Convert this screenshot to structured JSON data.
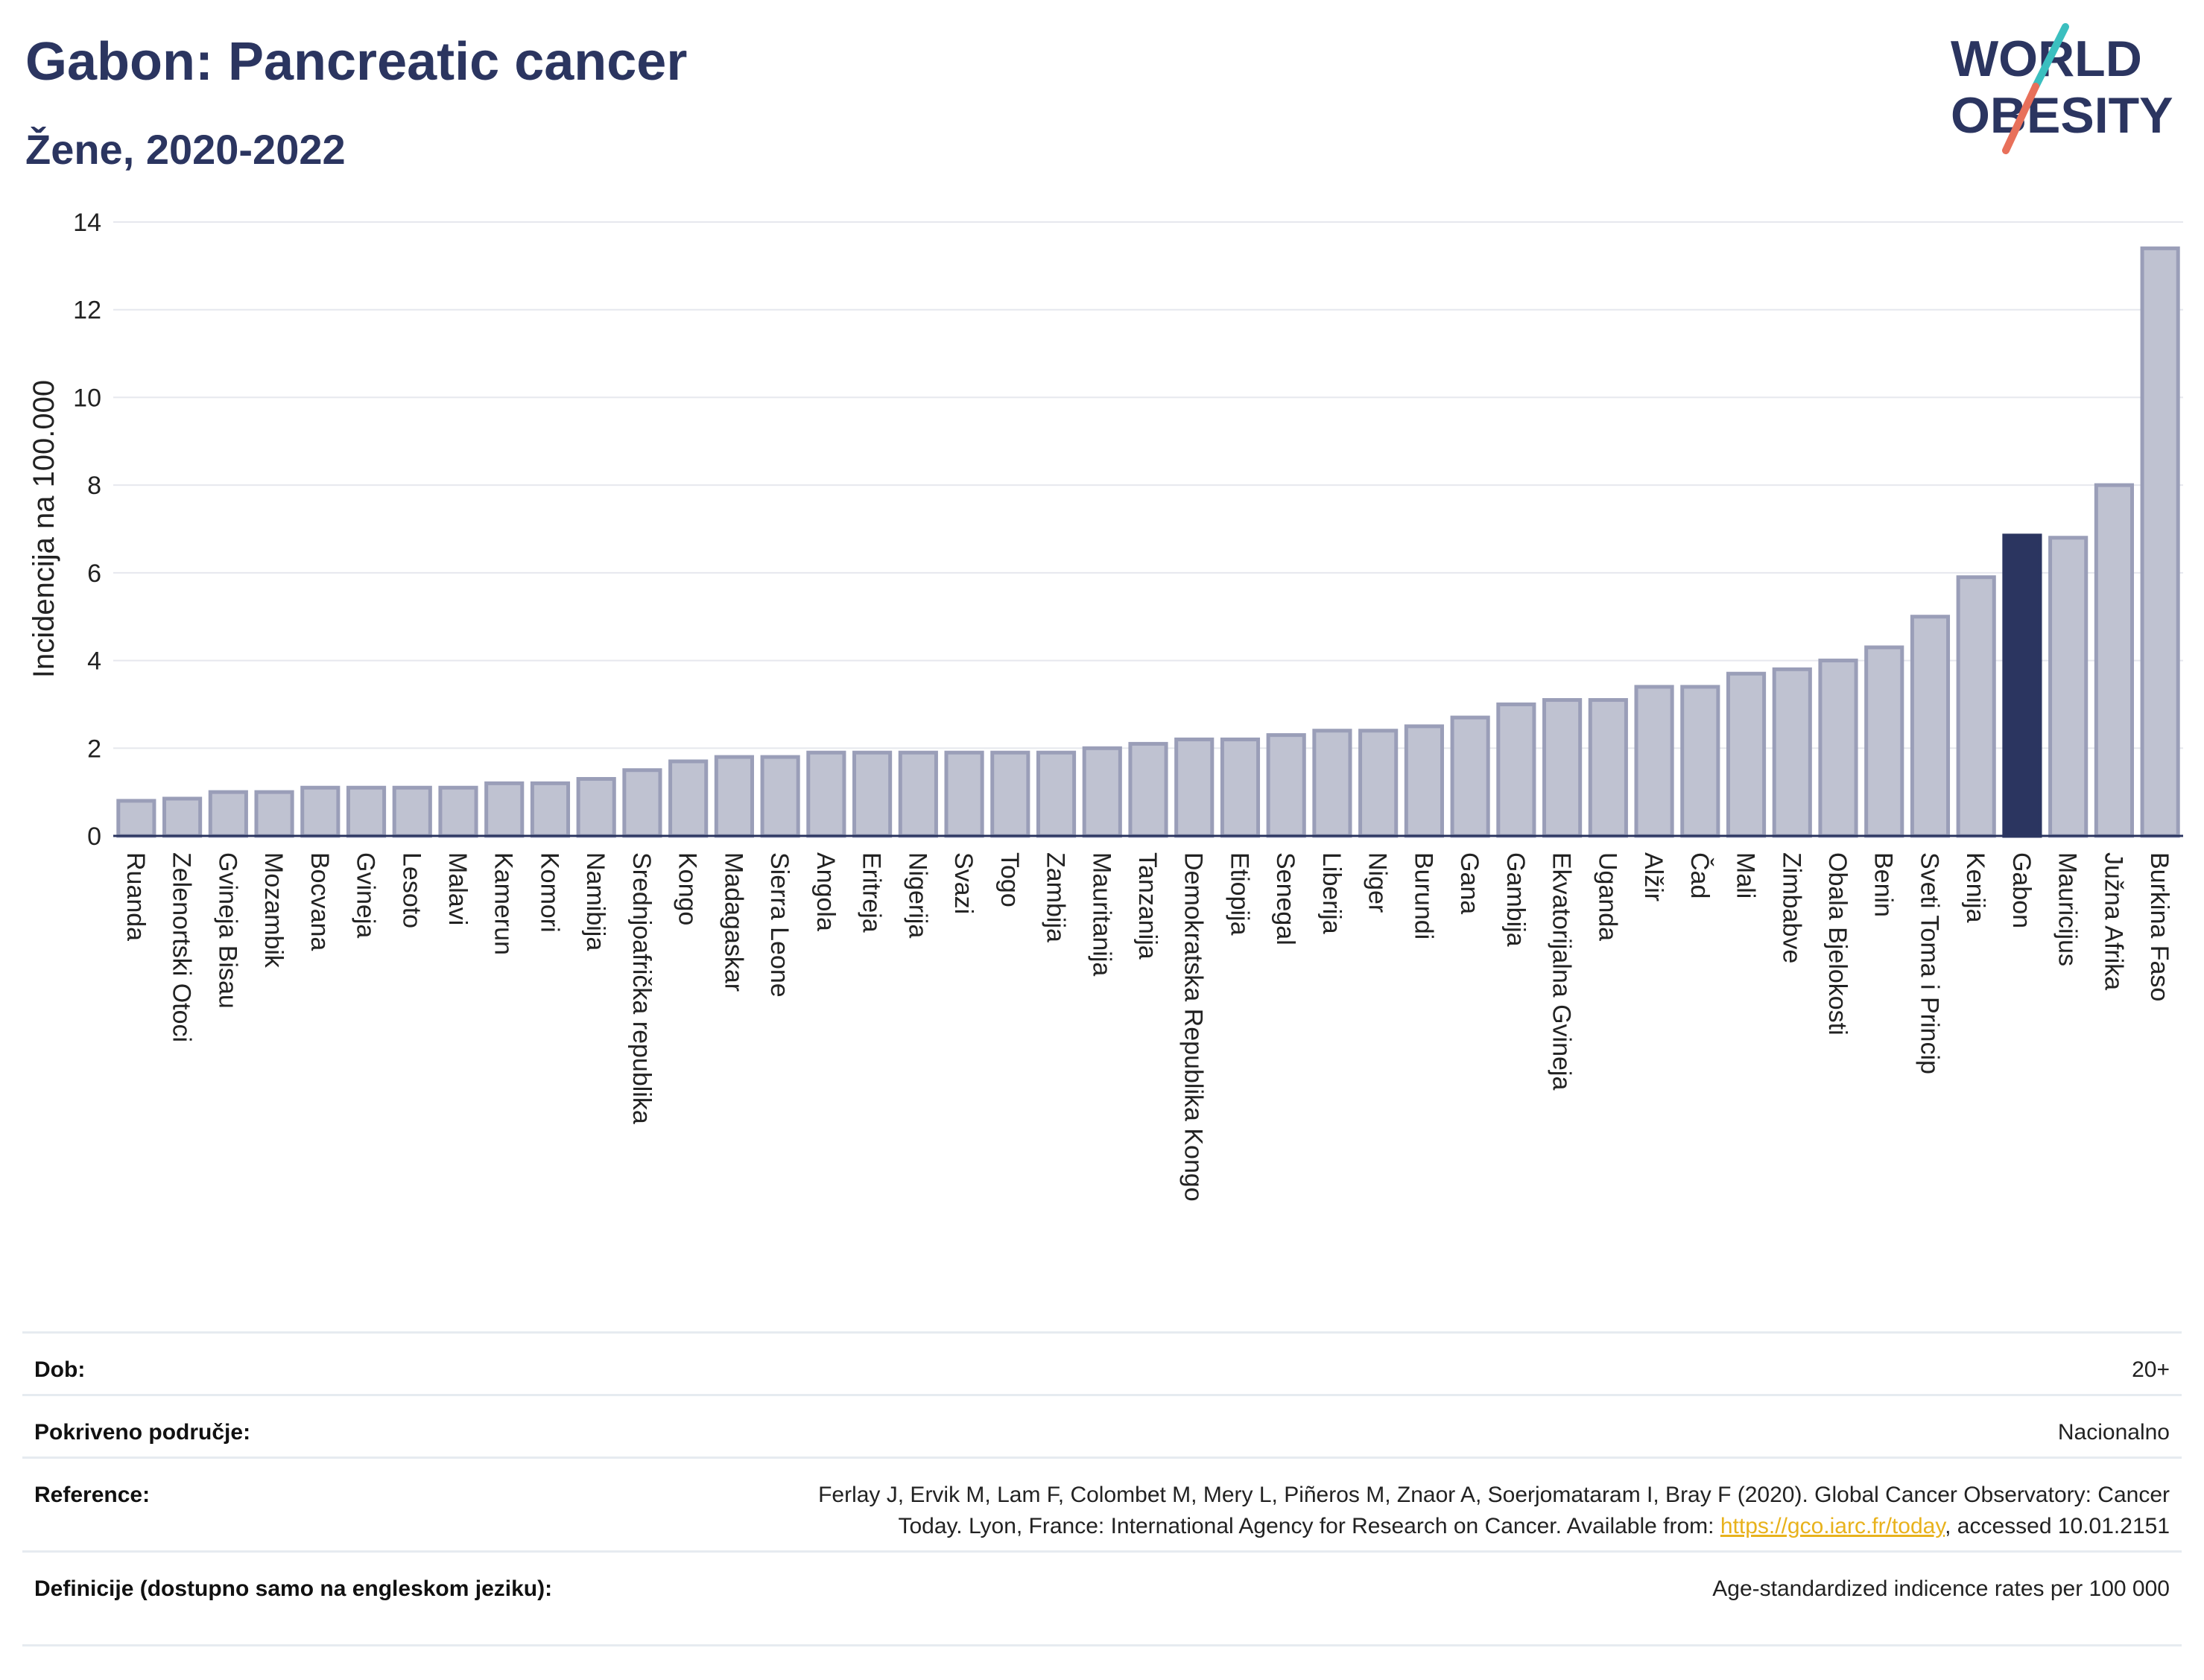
{
  "header": {
    "title": "Gabon: Pancreatic cancer",
    "subtitle": "Žene, 2020-2022"
  },
  "logo": {
    "line1": "WORLD",
    "line2": "OBESITY",
    "accent_teal": "#3bbfbf",
    "accent_red": "#e8705a",
    "text_color": "#2b3560"
  },
  "colors": {
    "bar_fill": "#bfc2d1",
    "bar_stroke": "#9a9eb8",
    "highlight": "#2b3560",
    "grid": "#e6e8ee"
  },
  "chart_data": {
    "type": "bar",
    "ylabel": "Incidencija na 100.000",
    "xlabel": "",
    "ylim": [
      0,
      14
    ],
    "yticks": [
      0,
      2,
      4,
      6,
      8,
      10,
      12,
      14
    ],
    "grid": true,
    "highlight_category": "Gabon",
    "categories": [
      "Ruanda",
      "Zelenortski Otoci",
      "Gvineja Bisau",
      "Mozambik",
      "Bocvana",
      "Gvineja",
      "Lesoto",
      "Malavi",
      "Kamerun",
      "Komori",
      "Namibija",
      "Srednjoafrička republika",
      "Kongo",
      "Madagaskar",
      "Sierra Leone",
      "Angola",
      "Eritreja",
      "Nigerija",
      "Svazi",
      "Togo",
      "Zambija",
      "Mauritanija",
      "Tanzanija",
      "Demokratska Republika Kongo",
      "Etiopija",
      "Senegal",
      "Liberija",
      "Niger",
      "Burundi",
      "Gana",
      "Gambija",
      "Ekvatorijalna Gvineja",
      "Uganda",
      "Alžir",
      "Čad",
      "Mali",
      "Zimbabve",
      "Obala Bjelokosti",
      "Benin",
      "Sveti Toma i Princip",
      "Kenija",
      "Gabon",
      "Mauricijus",
      "Južna Afrika",
      "Burkina Faso"
    ],
    "values": [
      0.8,
      0.85,
      1.0,
      1.0,
      1.1,
      1.1,
      1.1,
      1.1,
      1.2,
      1.2,
      1.3,
      1.5,
      1.7,
      1.8,
      1.8,
      1.9,
      1.9,
      1.9,
      1.9,
      1.9,
      1.9,
      2.0,
      2.1,
      2.2,
      2.2,
      2.3,
      2.4,
      2.4,
      2.5,
      2.7,
      3.0,
      3.1,
      3.1,
      3.4,
      3.4,
      3.7,
      3.8,
      4.0,
      4.3,
      5.0,
      5.9,
      6.85,
      6.8,
      8.0,
      13.4
    ]
  },
  "meta": {
    "rows": [
      {
        "label": "Dob:",
        "value": "20+"
      },
      {
        "label": "Pokriveno područje:",
        "value": "Nacionalno"
      },
      {
        "label": "Reference:",
        "value_line1": "Ferlay J, Ervik M, Lam F, Colombet M, Mery L, Piñeros M, Znaor A, Soerjomataram I, Bray F (2020). Global Cancer Observatory: Cancer",
        "value_line2_pre": "Today. Lyon, France: International Agency for Research on Cancer. Available from: ",
        "link": "https://gco.iarc.fr/today",
        "value_line2_post": ", accessed 10.01.2151"
      },
      {
        "label": "Definicije (dostupno samo na engleskom jeziku):",
        "value": "Age-standardized indicence rates per 100 000"
      }
    ]
  }
}
